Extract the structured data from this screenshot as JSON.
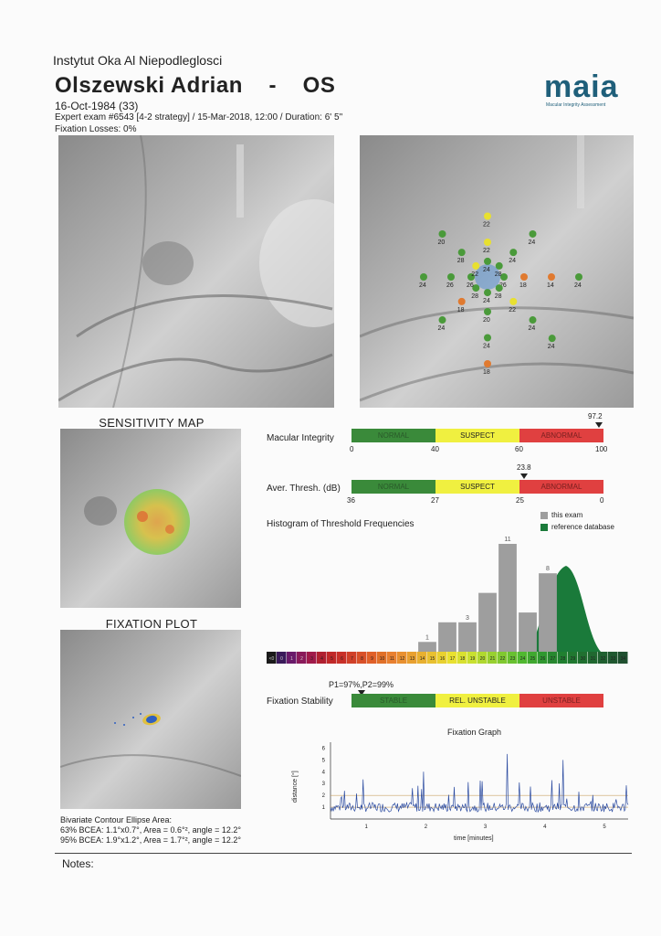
{
  "header": {
    "institute": "Instytut Oka Al Niepodleglosci",
    "patient": "Olszewski Adrian    -    OS",
    "dob": "16-Oct-1984 (33)",
    "exam": "Expert exam #6543 [4-2 strategy] / 15-Mar-2018, 12:00 / Duration: 6' 5''",
    "fixation_losses": "Fixation Losses: 0%"
  },
  "logo": {
    "text": "maia",
    "subtitle": "Macular Integrity Assessment"
  },
  "grid_values": [
    {
      "v": "26",
      "c": "#4a9a3a"
    },
    {
      "v": "28",
      "c": "#4a9a3a"
    },
    {
      "v": "24",
      "c": "#4a9a3a"
    },
    {
      "v": "28",
      "c": "#4a9a3a"
    },
    {
      "v": "26",
      "c": "#4a9a3a"
    },
    {
      "v": "22",
      "c": "#e8e030"
    },
    {
      "v": "24",
      "c": "#4a9a3a"
    },
    {
      "v": "28",
      "c": "#4a9a3a"
    },
    {
      "v": "18",
      "c": "#e07a30"
    },
    {
      "v": "22",
      "c": "#e8e030"
    },
    {
      "v": "20",
      "c": "#4a9a3a"
    },
    {
      "v": "18",
      "c": "#e07a30"
    },
    {
      "v": "26",
      "c": "#4a9a3a"
    },
    {
      "v": "28",
      "c": "#4a9a3a"
    },
    {
      "v": "22",
      "c": "#e8e030"
    },
    {
      "v": "24",
      "c": "#4a9a3a"
    },
    {
      "v": "14",
      "c": "#e07a30"
    },
    {
      "v": "24",
      "c": "#4a9a3a"
    },
    {
      "v": "24",
      "c": "#4a9a3a"
    },
    {
      "v": "24",
      "c": "#4a9a3a"
    },
    {
      "v": "24",
      "c": "#4a9a3a"
    },
    {
      "v": "20",
      "c": "#4a9a3a"
    },
    {
      "v": "22",
      "c": "#e8e030"
    },
    {
      "v": "24",
      "c": "#4a9a3a"
    },
    {
      "v": "24",
      "c": "#4a9a3a"
    },
    {
      "v": "24",
      "c": "#4a9a3a"
    },
    {
      "v": "18",
      "c": "#e07a30"
    }
  ],
  "sensitivity_map_title": "SENSITIVITY MAP",
  "fixation_plot_title": "FIXATION PLOT",
  "macular_integrity": {
    "label": "Macular Integrity",
    "marker": "97.2",
    "segments": [
      "NORMAL",
      "SUSPECT",
      "ABNORMAL"
    ],
    "ticks": [
      "0",
      "40",
      "60",
      "100"
    ]
  },
  "aver_thresh": {
    "label": "Aver. Thresh. (dB)",
    "marker": "23.8",
    "segments": [
      "NORMAL",
      "SUSPECT",
      "ABNORMAL"
    ],
    "ticks": [
      "36",
      "27",
      "25",
      "0"
    ]
  },
  "histogram": {
    "title": "Histogram of Threshold Frequencies",
    "legend": [
      {
        "label": "this exam",
        "color": "#9e9e9e"
      },
      {
        "label": "reference database",
        "color": "#1a7a3a"
      }
    ]
  },
  "chart_data": {
    "type": "bar",
    "title": "Histogram of Threshold Frequencies",
    "categories": [
      "<0",
      "0",
      "1",
      "2",
      "3",
      "4",
      "5",
      "6",
      "7",
      "8",
      "9",
      "10",
      "11",
      "12",
      "13",
      "14",
      "15",
      "16",
      "17",
      "18",
      "19",
      "20",
      "21",
      "22",
      "23",
      "24",
      "25",
      "26",
      "27",
      "28",
      "29",
      "30",
      "31",
      "32",
      "33",
      "34"
    ],
    "series": [
      {
        "name": "this exam",
        "values": [
          0,
          0,
          0,
          0,
          0,
          0,
          0,
          0,
          0,
          0,
          0,
          0,
          0,
          0,
          0,
          1,
          0,
          3,
          0,
          3,
          0,
          6,
          0,
          11,
          0,
          4,
          0,
          8,
          0,
          0,
          0,
          0,
          0,
          0,
          0,
          0
        ]
      }
    ]
  },
  "hist_labels": [
    {
      "i": 15,
      "v": "1"
    },
    {
      "i": 19,
      "v": "3"
    },
    {
      "i": 23,
      "v": "11"
    },
    {
      "i": 27,
      "v": "8"
    }
  ],
  "fixation_stability": {
    "label": "Fixation Stability",
    "p_values": "P1=97%,P2=99%",
    "segments": [
      "STABLE",
      "REL. UNSTABLE",
      "UNSTABLE"
    ]
  },
  "fixation_graph": {
    "title": "Fixation Graph",
    "ylabel": "distance [°]",
    "xlabel": "time [minutes]",
    "yticks": [
      "1",
      "2",
      "3",
      "4",
      "5",
      "6"
    ],
    "xticks": [
      "1",
      "2",
      "3",
      "4",
      "5"
    ]
  },
  "bcea": {
    "title": "Bivariate Contour Ellipse Area:",
    "line63": "63% BCEA: 1.1°x0.7°, Area = 0.6°², angle = 12.2°",
    "line95": "95% BCEA: 1.9°x1.2°, Area = 1.7°², angle = 12.2°"
  },
  "notes_label": "Notes:"
}
